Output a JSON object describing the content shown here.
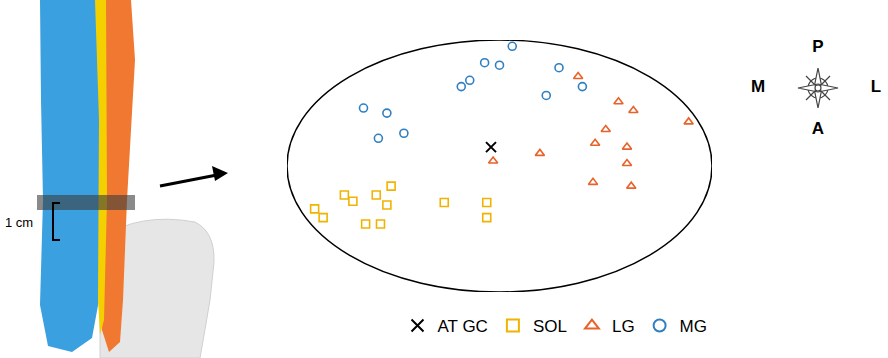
{
  "chart_data": {
    "type": "scatter",
    "xlim": [
      -1,
      1
    ],
    "ylim": [
      -1,
      1
    ],
    "tick_labels": false,
    "grid": false,
    "legend": "bottom",
    "series": [
      {
        "name": "AT GC",
        "color": "#000000",
        "marker": "x-thin",
        "x": [
          -0.04
        ],
        "values": [
          0.15
        ]
      },
      {
        "name": "SOL",
        "color": "#f0b400",
        "marker": "square-open",
        "x": [
          -0.73,
          -0.69,
          -0.58,
          -0.51,
          -0.87,
          -0.83,
          -0.53,
          -0.26,
          -0.06,
          -0.63,
          -0.56,
          -0.06
        ],
        "values": [
          -0.23,
          -0.28,
          -0.23,
          -0.16,
          -0.34,
          -0.41,
          -0.31,
          -0.29,
          -0.29,
          -0.46,
          -0.46,
          -0.41
        ]
      },
      {
        "name": "LG",
        "color": "#e8622a",
        "marker": "triangle-up-open",
        "x": [
          0.37,
          0.56,
          0.63,
          0.5,
          0.89,
          0.45,
          0.6,
          0.19,
          -0.03,
          0.6,
          0.44,
          0.62
        ],
        "values": [
          0.71,
          0.51,
          0.44,
          0.29,
          0.35,
          0.18,
          0.15,
          0.1,
          0.04,
          0.02,
          -0.13,
          -0.16
        ]
      },
      {
        "name": "MG",
        "color": "#2f7fc1",
        "marker": "circle-open",
        "x": [
          0.06,
          -0.07,
          0.0,
          -0.18,
          -0.14,
          0.28,
          0.39,
          0.22,
          -0.64,
          -0.53,
          -0.57,
          -0.45
        ],
        "values": [
          0.95,
          0.82,
          0.8,
          0.63,
          0.68,
          0.78,
          0.63,
          0.56,
          0.46,
          0.42,
          0.22,
          0.26
        ]
      }
    ]
  },
  "illustration": {
    "scale_label": "1 cm"
  },
  "compass": {
    "top": "P",
    "bottom": "A",
    "left": "M",
    "right": "L"
  }
}
